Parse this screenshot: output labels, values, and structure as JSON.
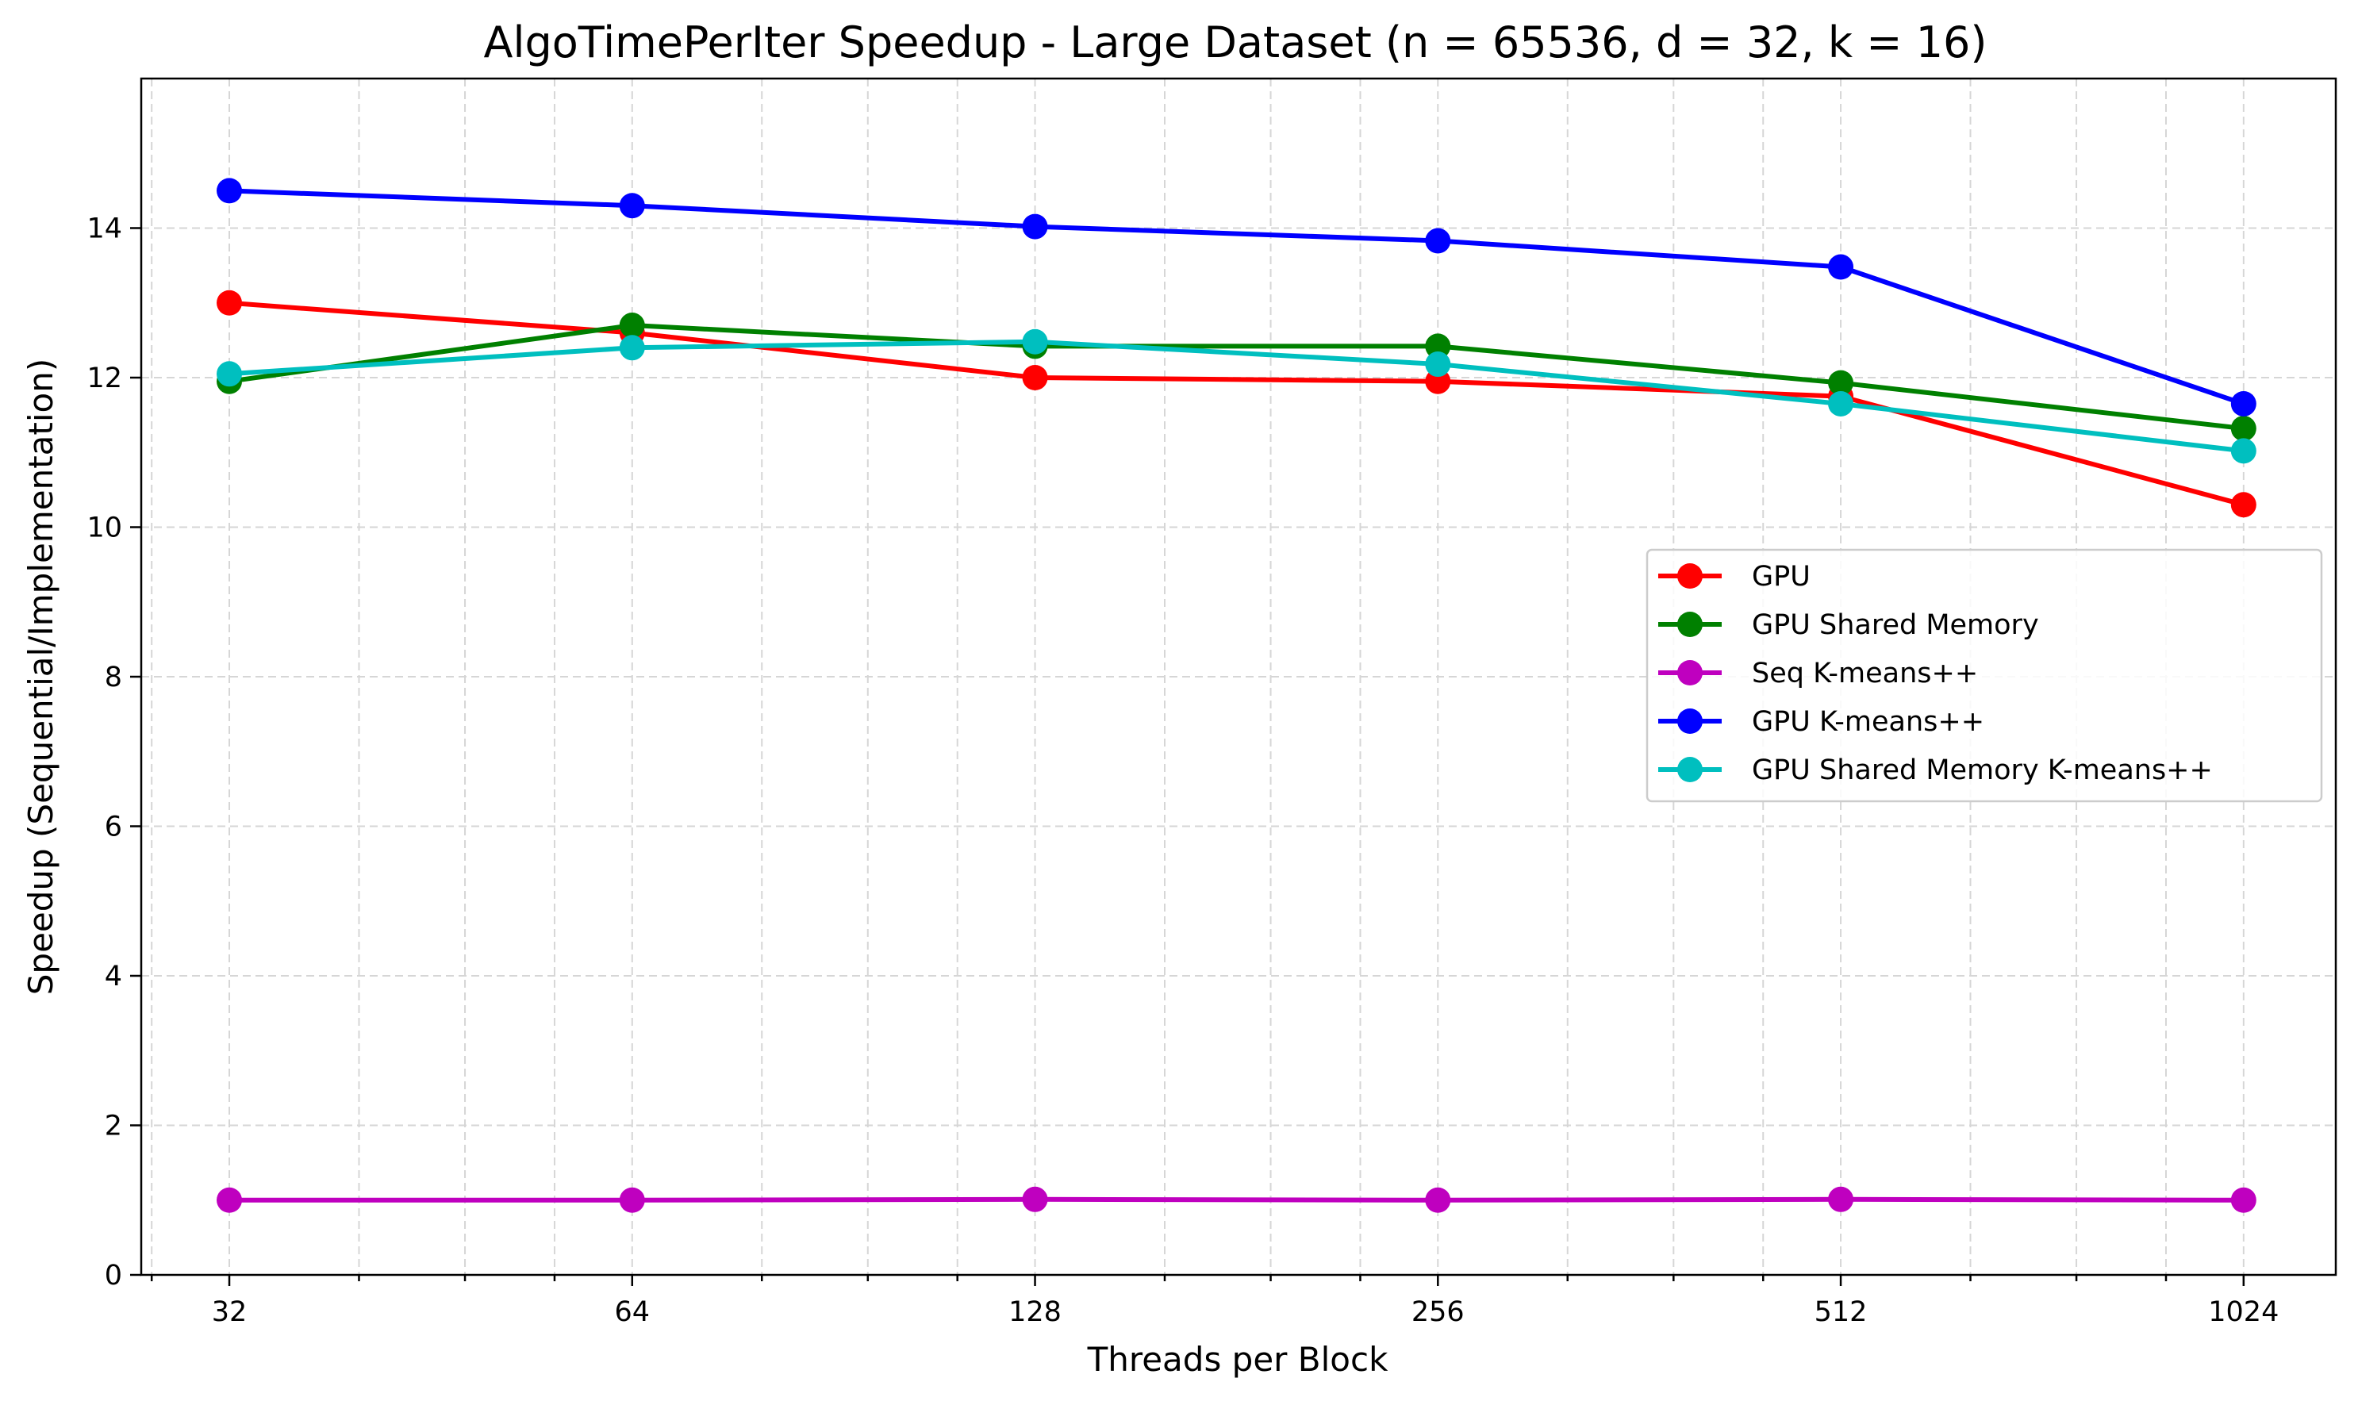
{
  "chart_data": {
    "type": "line",
    "title": "AlgoTimePerIter Speedup - Large Dataset (n = 65536, d = 32, k = 16)",
    "xlabel": "Threads per Block",
    "ylabel": "Speedup (Sequential/Implementation)",
    "x": [
      32,
      64,
      128,
      256,
      512,
      1024
    ],
    "x_tick_labels": [
      "32",
      "64",
      "128",
      "256",
      "512",
      "1024"
    ],
    "x_scale": "log2",
    "xlim": [
      27.5,
      1200
    ],
    "ylim": [
      0,
      16
    ],
    "y_ticks": [
      0,
      2,
      4,
      6,
      8,
      10,
      12,
      14
    ],
    "y_tick_labels": [
      "0",
      "2",
      "4",
      "6",
      "8",
      "10",
      "12",
      "14"
    ],
    "grid": true,
    "legend_position": "center-right",
    "series": [
      {
        "name": "GPU",
        "color": "#ff0000",
        "values": [
          13.0,
          12.6,
          12.0,
          11.95,
          11.75,
          10.3
        ]
      },
      {
        "name": "GPU Shared Memory",
        "color": "#008000",
        "values": [
          11.95,
          12.7,
          12.42,
          12.42,
          11.93,
          11.32
        ]
      },
      {
        "name": "Seq K-means++",
        "color": "#bf00bf",
        "values": [
          1.0,
          1.0,
          1.01,
          1.0,
          1.01,
          1.0
        ]
      },
      {
        "name": "GPU K-means++",
        "color": "#0000ff",
        "values": [
          14.5,
          14.3,
          14.02,
          13.83,
          13.48,
          11.65
        ]
      },
      {
        "name": "GPU Shared Memory K-means++",
        "color": "#00bfbf",
        "values": [
          12.05,
          12.4,
          12.48,
          12.18,
          11.65,
          11.02
        ]
      }
    ]
  }
}
